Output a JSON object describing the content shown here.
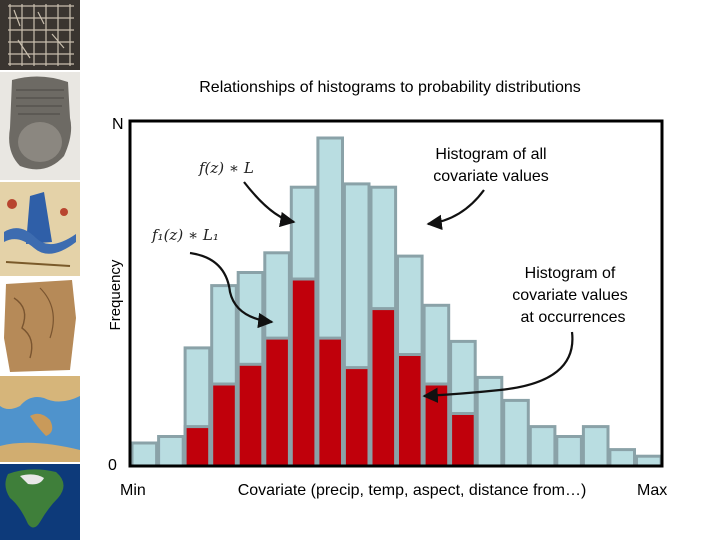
{
  "chart_data": {
    "type": "bar",
    "title": "Relationships of histograms to probability distributions",
    "ylabel": "Frequency",
    "xlabel": "Covariate (precip, temp, aspect, distance from…)",
    "y_top_label": "N",
    "y_bottom_label": "0",
    "x_min_label": "Min",
    "x_max_label": "Max",
    "ylim": [
      0,
      100
    ],
    "series": [
      {
        "name": "Histogram of all covariate values",
        "color": "#b9dde1",
        "edge_color": "#8aa2a8",
        "values": [
          7,
          9,
          36,
          55,
          59,
          65,
          85,
          100,
          86,
          85,
          64,
          49,
          38,
          27,
          20,
          12,
          9,
          12,
          5,
          3
        ]
      },
      {
        "name": "Histogram of covariate values at occurrences",
        "color": "#c0000b",
        "edge_color": "#8aa2a8",
        "values": [
          0,
          0,
          12,
          25,
          31,
          39,
          57,
          39,
          30,
          48,
          34,
          25,
          16,
          0,
          0,
          0,
          0,
          0,
          0,
          0
        ]
      }
    ],
    "annotations": [
      {
        "id": "all",
        "text_lines": [
          "Histogram of all",
          "covariate values"
        ]
      },
      {
        "id": "occ",
        "text_lines": [
          "Histogram of",
          "covariate values",
          "at occurrences"
        ]
      },
      {
        "id": "f",
        "text": "f(z) ∗ L"
      },
      {
        "id": "f1",
        "text": "f₁(z) ∗ L₁"
      }
    ]
  },
  "colors": {
    "axis": "#000000",
    "arrow": "#111111"
  },
  "sidebar_images": [
    "grid-map-image",
    "clay-tablet-image",
    "medieval-map-image",
    "papyrus-map-image",
    "mediterranean-map-image",
    "north-america-satellite-image"
  ]
}
